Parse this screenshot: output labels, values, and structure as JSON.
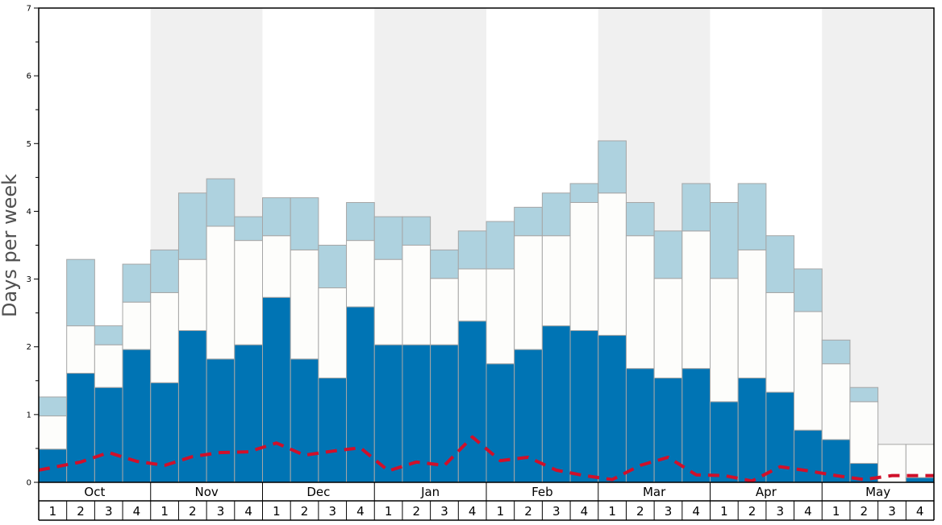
{
  "chart_data": {
    "type": "bar",
    "stacked": true,
    "ylabel": "Days per week",
    "ylim": [
      0,
      7
    ],
    "y_ticks": [
      "0",
      "1",
      "2",
      "3",
      "4",
      "5",
      "6",
      "7"
    ],
    "months": [
      "Oct",
      "Nov",
      "Dec",
      "Jan",
      "Feb",
      "Mar",
      "Apr",
      "May"
    ],
    "week_labels": [
      "1",
      "2",
      "3",
      "4"
    ],
    "categories": [
      "Oct 1",
      "Oct 2",
      "Oct 3",
      "Oct 4",
      "Nov 1",
      "Nov 2",
      "Nov 3",
      "Nov 4",
      "Dec 1",
      "Dec 2",
      "Dec 3",
      "Dec 4",
      "Jan 1",
      "Jan 2",
      "Jan 3",
      "Jan 4",
      "Feb 1",
      "Feb 2",
      "Feb 3",
      "Feb 4",
      "Mar 1",
      "Mar 2",
      "Mar 3",
      "Mar 4",
      "Apr 1",
      "Apr 2",
      "Apr 3",
      "Apr 4",
      "May 1",
      "May 2",
      "May 3",
      "May 4"
    ],
    "stack_totals_description": "values are cumulative tops of each stacked layer",
    "series": [
      {
        "color": "#0074b4",
        "values": [
          0.49,
          1.61,
          1.4,
          1.96,
          1.47,
          2.24,
          1.82,
          2.03,
          2.73,
          1.82,
          1.54,
          2.59,
          2.03,
          2.03,
          2.03,
          2.38,
          1.75,
          1.96,
          2.31,
          2.24,
          2.17,
          1.68,
          1.54,
          1.68,
          1.19,
          1.54,
          1.33,
          0.77,
          0.63,
          0.28,
          0.0,
          0.07
        ]
      },
      {
        "color": "#fdfdfb",
        "values": [
          0.49,
          0.7,
          0.63,
          0.7,
          1.33,
          1.05,
          1.96,
          1.54,
          0.91,
          1.61,
          1.33,
          0.98,
          1.26,
          1.47,
          0.98,
          0.77,
          1.4,
          1.68,
          1.33,
          1.89,
          2.1,
          1.96,
          1.47,
          2.03,
          1.82,
          1.89,
          1.47,
          1.75,
          1.12,
          0.91,
          0.56,
          0.49
        ]
      },
      {
        "color": "#aed2df",
        "values": [
          0.28,
          0.98,
          0.28,
          0.56,
          0.63,
          0.98,
          0.7,
          0.35,
          0.56,
          0.77,
          0.63,
          0.56,
          0.63,
          0.42,
          0.42,
          0.56,
          0.7,
          0.42,
          0.63,
          0.28,
          0.77,
          0.49,
          0.7,
          0.7,
          1.12,
          0.98,
          0.84,
          0.63,
          0.35,
          0.21,
          0.0,
          0.0
        ]
      }
    ],
    "line": {
      "style": "dashed",
      "color": "#d0102a",
      "values": [
        0.18,
        0.3,
        0.44,
        0.31,
        0.25,
        0.38,
        0.44,
        0.45,
        0.58,
        0.4,
        0.46,
        0.51,
        0.17,
        0.3,
        0.25,
        0.67,
        0.32,
        0.37,
        0.18,
        0.1,
        0.04,
        0.25,
        0.37,
        0.11,
        0.1,
        0.02,
        0.23,
        0.17,
        0.1,
        0.04,
        0.1,
        0.1
      ]
    },
    "colors": {
      "shade_band": "#f0f0f0",
      "bar_outline": "#a6a6a6",
      "axis_text": "#505050"
    }
  }
}
